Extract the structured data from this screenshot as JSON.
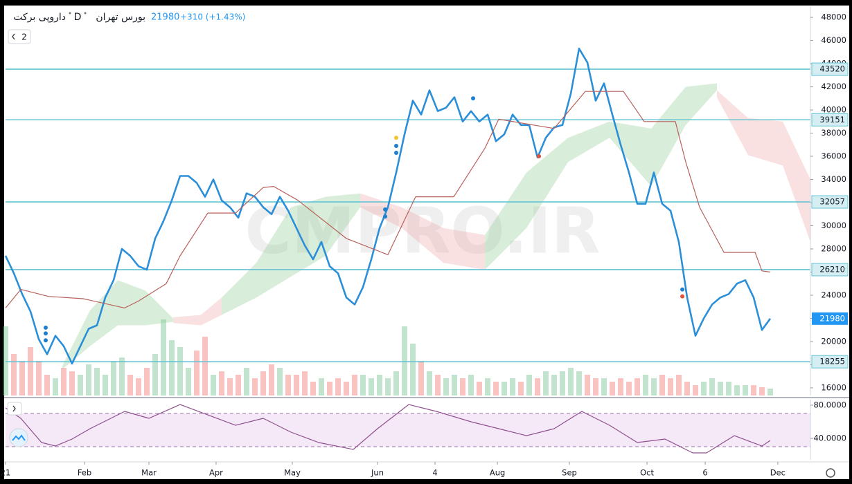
{
  "header": {
    "symbol": "داروپی برکت",
    "interval": "D",
    "exchange": "بورس تهران",
    "price": "21980",
    "change": "+310 (+1.43%)",
    "indicators_count": "2"
  },
  "watermark": "CMPRO.IR",
  "chart_data": [
    {
      "type": "line",
      "xlim": [
        0,
        96.83
      ],
      "ylim": [
        15340,
        48900
      ],
      "yticks": [
        16000,
        18000,
        20000,
        22000,
        24000,
        26000,
        28000,
        30000,
        32000,
        34000,
        36000,
        38000,
        40000,
        42000,
        44000,
        46000,
        48000
      ],
      "xticks": [
        {
          "value": 0,
          "label": "21"
        },
        {
          "value": 9.5,
          "label": "Feb"
        },
        {
          "value": 17.25,
          "label": "Mar"
        },
        {
          "value": 25.33,
          "label": "Apr"
        },
        {
          "value": 34.5,
          "label": "May"
        },
        {
          "value": 44.75,
          "label": "Jun"
        },
        {
          "value": 51.67,
          "label": "4"
        },
        {
          "value": 59.17,
          "label": "Aug"
        },
        {
          "value": 67.83,
          "label": "Sep"
        },
        {
          "value": 77.17,
          "label": "Oct"
        },
        {
          "value": 84.17,
          "label": "6"
        },
        {
          "value": 92.9,
          "label": "Dec"
        }
      ],
      "x": [
        0,
        1,
        2,
        3,
        4,
        5,
        6,
        7,
        8,
        9,
        10,
        11,
        12,
        13,
        14,
        15,
        16,
        17,
        18,
        19,
        20,
        21,
        22,
        23,
        24,
        25,
        26,
        27,
        28,
        29,
        30,
        31,
        32,
        33,
        34,
        35,
        36,
        37,
        38,
        39,
        40,
        41,
        42,
        43,
        44,
        45,
        46,
        47,
        48,
        49,
        50,
        51,
        52,
        53,
        54,
        55,
        56,
        57,
        58,
        59,
        60,
        61,
        62,
        63,
        64,
        65,
        66,
        67,
        68,
        69,
        70,
        71,
        72,
        73,
        74,
        75,
        76,
        77,
        78,
        79,
        80,
        81,
        82,
        83,
        84,
        85,
        86,
        87,
        88,
        89,
        90,
        91,
        92
      ],
      "series": [
        {
          "color": "#2b8fd8",
          "values": [
            27400,
            25900,
            24100,
            22600,
            20200,
            18900,
            20500,
            19600,
            18100,
            19600,
            21100,
            21400,
            23800,
            25300,
            28000,
            27400,
            26500,
            26200,
            28900,
            30400,
            32200,
            34300,
            34300,
            33700,
            32500,
            34000,
            32200,
            31600,
            30700,
            32800,
            32500,
            31600,
            31000,
            32500,
            31300,
            29800,
            28300,
            27100,
            28600,
            26500,
            25900,
            23800,
            23200,
            24700,
            27100,
            29800,
            31600,
            34600,
            37900,
            40800,
            39600,
            41700,
            39900,
            40200,
            41100,
            39000,
            39900,
            39000,
            39600,
            37300,
            37900,
            39600,
            38700,
            38700,
            35900,
            37600,
            38500,
            38700,
            41400,
            45300,
            44100,
            40800,
            42300,
            39600,
            37000,
            34600,
            31900,
            31900,
            34600,
            31900,
            31300,
            28600,
            23800,
            20500,
            22000,
            23200,
            23800,
            24100,
            25000,
            25300,
            23800,
            21000,
            21980
          ]
        },
        {
          "color": "#b8605a",
          "x": [
            0,
            1.83,
            5.17,
            9.33,
            14.33,
            16,
            19.33,
            21,
            24.33,
            27.67,
            31,
            32.25,
            35.17,
            41,
            46,
            49.33,
            53.92,
            57.67,
            59.33,
            63.5,
            66,
            69.75,
            74.33,
            76.83,
            80.58,
            81.83,
            83.5,
            86.42,
            90.17,
            91,
            92
          ],
          "values": [
            22900,
            24500,
            23900,
            23700,
            22900,
            23500,
            25000,
            27400,
            31100,
            31100,
            33300,
            33400,
            32200,
            28900,
            27500,
            32500,
            32500,
            36700,
            39200,
            38700,
            38400,
            41600,
            41600,
            39000,
            39000,
            35500,
            31600,
            27700,
            27700,
            26100,
            26000
          ]
        }
      ],
      "cloud": [
        {
          "color": "rgba(129,199,132,0.3)",
          "x": [
            6.83,
            10.17,
            13.5,
            16.83,
            20.17
          ],
          "upper": [
            17900,
            22700,
            25300,
            24400,
            22000
          ],
          "lower": [
            17600,
            19600,
            21400,
            21400,
            21700
          ]
        },
        {
          "color": "rgba(239,154,154,0.3)",
          "x": [
            20.17,
            23.5,
            26
          ],
          "upper": [
            22100,
            22300,
            23800
          ],
          "lower": [
            21600,
            21400,
            22300
          ]
        },
        {
          "color": "rgba(129,199,132,0.3)",
          "x": [
            26,
            30.17,
            34.33,
            38.5,
            42.67
          ],
          "upper": [
            23800,
            26800,
            31600,
            32500,
            32800
          ],
          "lower": [
            22300,
            23800,
            25600,
            27400,
            31600
          ]
        },
        {
          "color": "rgba(239,154,154,0.3)",
          "x": [
            42.67,
            47.67,
            52.67,
            57.67
          ],
          "upper": [
            32800,
            31600,
            29800,
            29200
          ],
          "lower": [
            31600,
            29800,
            26800,
            26200
          ]
        },
        {
          "color": "rgba(129,199,132,0.3)",
          "x": [
            57.67,
            62.67,
            67.67,
            72.67,
            77.67,
            81.83,
            85.58
          ],
          "upper": [
            29200,
            34600,
            37600,
            39000,
            38400,
            42000,
            42300
          ],
          "lower": [
            26200,
            29800,
            35500,
            37600,
            33400,
            38700,
            41700
          ]
        },
        {
          "color": "rgba(239,154,154,0.3)",
          "x": [
            85.58,
            89.33,
            93.5,
            96.83
          ],
          "upper": [
            41700,
            39300,
            39000,
            34000
          ],
          "lower": [
            41100,
            36100,
            35200,
            28600
          ]
        }
      ],
      "volume": {
        "vlim": [
          0,
          562
        ],
        "up_color": "rgba(102,187,136,0.4)",
        "down_color": "rgba(239,83,80,0.35)",
        "values": [
          100,
          60,
          50,
          70,
          50,
          30,
          25,
          40,
          35,
          30,
          45,
          40,
          30,
          50,
          55,
          30,
          25,
          40,
          60,
          110,
          80,
          70,
          40,
          65,
          85,
          30,
          35,
          25,
          30,
          40,
          25,
          35,
          45,
          40,
          30,
          30,
          35,
          20,
          25,
          20,
          25,
          20,
          30,
          30,
          25,
          30,
          25,
          35,
          100,
          75,
          50,
          35,
          30,
          25,
          30,
          25,
          30,
          20,
          25,
          20,
          20,
          25,
          20,
          30,
          25,
          35,
          30,
          35,
          40,
          35,
          30,
          25,
          25,
          20,
          25,
          20,
          25,
          30,
          25,
          30,
          25,
          30,
          20,
          15,
          20,
          25,
          20,
          20,
          15,
          15,
          15,
          12,
          10
        ]
      },
      "levels": [
        43520,
        39151,
        32057,
        26210,
        18255
      ],
      "level_color": "#62c3d3",
      "markers": [
        {
          "x": 4.83,
          "y": 21200,
          "color": "#1e7fd0"
        },
        {
          "x": 4.83,
          "y": 20700,
          "color": "#1e7fd0"
        },
        {
          "x": 4.83,
          "y": 20100,
          "color": "#1e7fd0"
        },
        {
          "x": 47,
          "y": 37600,
          "color": "#f4c430"
        },
        {
          "x": 47,
          "y": 36900,
          "color": "#1e7fd0"
        },
        {
          "x": 47,
          "y": 36300,
          "color": "#1e7fd0"
        },
        {
          "x": 45.67,
          "y": 31400,
          "color": "#1e7fd0"
        },
        {
          "x": 45.67,
          "y": 30800,
          "color": "#1e7fd0"
        },
        {
          "x": 56.25,
          "y": 41000,
          "color": "#1e7fd0"
        },
        {
          "x": 64.17,
          "y": 36000,
          "color": "#e0533a"
        },
        {
          "x": 81.42,
          "y": 24500,
          "color": "#1e7fd0"
        },
        {
          "x": 81.42,
          "y": 23900,
          "color": "#e0533a"
        }
      ]
    },
    {
      "type": "line",
      "xlim": [
        0,
        96.83
      ],
      "ylim": [
        14.2,
        86.7
      ],
      "yticks": [
        {
          "value": 80,
          "label": "80.0000"
        },
        {
          "value": 40,
          "label": "40.0000"
        }
      ],
      "bands": [
        30,
        70
      ],
      "band_color": "rgba(186,104,200,0.15)",
      "series": [
        {
          "color": "#8e4f8e",
          "x": [
            0,
            1.83,
            4.33,
            6,
            8,
            10.17,
            14.33,
            17.25,
            21,
            24.33,
            27.67,
            31,
            34.33,
            37.67,
            41.83,
            44.75,
            48.5,
            51.83,
            56,
            59.33,
            62.67,
            66,
            69.33,
            72.67,
            76,
            79.33,
            82.67,
            84.33,
            87.67,
            91,
            92
          ],
          "values": [
            76.7,
            64.2,
            35,
            30.8,
            39.2,
            51.7,
            72.5,
            64.2,
            80.8,
            68.3,
            55.8,
            64.2,
            47.5,
            35,
            26.7,
            51.7,
            80.8,
            72.5,
            60,
            51.7,
            43.3,
            51.7,
            72.5,
            55.8,
            35,
            39.2,
            22.5,
            22.5,
            43.3,
            30.8,
            37.5
          ]
        }
      ]
    }
  ]
}
